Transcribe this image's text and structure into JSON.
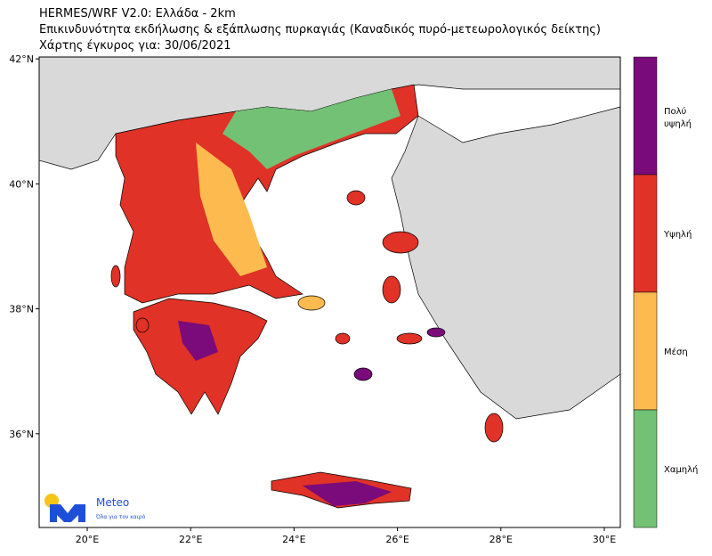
{
  "header": {
    "lines": [
      "HERMES/WRF V2.0: Ελλάδα - 2km",
      "Επικινδυνότητα εκδήλωσης & εξάπλωσης πυρκαγιάς (Καναδικός πυρό-μετεωρολογικός δείκτης)",
      "Χάρτης έγκυρος για: 30/06/2021"
    ]
  },
  "map": {
    "xlim": [
      19.07,
      30.31
    ],
    "ylim": [
      34.5,
      42.03
    ],
    "xticks": [
      {
        "value": 20,
        "label": "20°E"
      },
      {
        "value": 22,
        "label": "22°E"
      },
      {
        "value": 24,
        "label": "24°E"
      },
      {
        "value": 26,
        "label": "26°E"
      },
      {
        "value": 28,
        "label": "28°E"
      },
      {
        "value": 30,
        "label": "30°E"
      }
    ],
    "yticks": [
      {
        "value": 36,
        "label": "36°N"
      },
      {
        "value": 38,
        "label": "38°N"
      },
      {
        "value": 40,
        "label": "40°N"
      },
      {
        "value": 42,
        "label": "42°N"
      }
    ]
  },
  "legend": {
    "classes": [
      {
        "label": "Πολύ υψηλή",
        "color": "#7b0a7b"
      },
      {
        "label": "Υψηλή",
        "color": "#e03226"
      },
      {
        "label": "Μέση",
        "color": "#fdbb4f"
      },
      {
        "label": "Χαμηλή",
        "color": "#72c174"
      }
    ]
  },
  "logo": {
    "name": "Meteo",
    "tagline": "Όλα για τον καιρό"
  }
}
